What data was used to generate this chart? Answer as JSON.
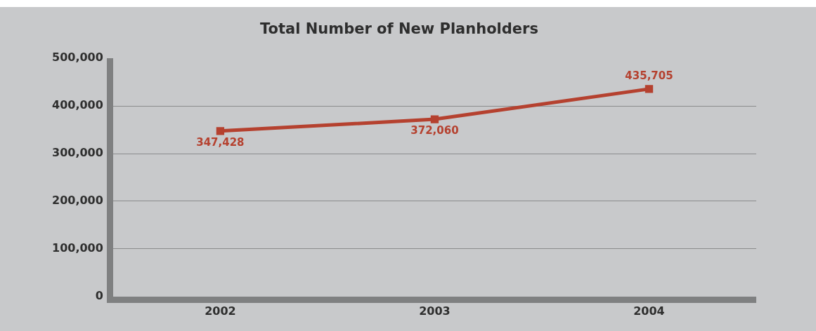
{
  "chart_data": {
    "type": "line",
    "title": "Total Number of New Planholders",
    "categories": [
      "2002",
      "2003",
      "2004"
    ],
    "series": [
      {
        "color": "#b5412f",
        "values": [
          347428,
          372060,
          435705
        ],
        "value_labels": [
          "347,428",
          "372,060",
          "435,705"
        ]
      }
    ],
    "ylim": [
      0,
      500000
    ],
    "yticks": [
      {
        "value": 0,
        "label": "0"
      },
      {
        "value": 100000,
        "label": "100,000"
      },
      {
        "value": 200000,
        "label": "200,000"
      },
      {
        "value": 300000,
        "label": "300,000"
      },
      {
        "value": 400000,
        "label": "400,000"
      },
      {
        "value": 500000,
        "label": "500,000"
      }
    ],
    "grid": "y",
    "legend": false,
    "marker": "square",
    "line_style": "solid",
    "data_labels": true
  }
}
